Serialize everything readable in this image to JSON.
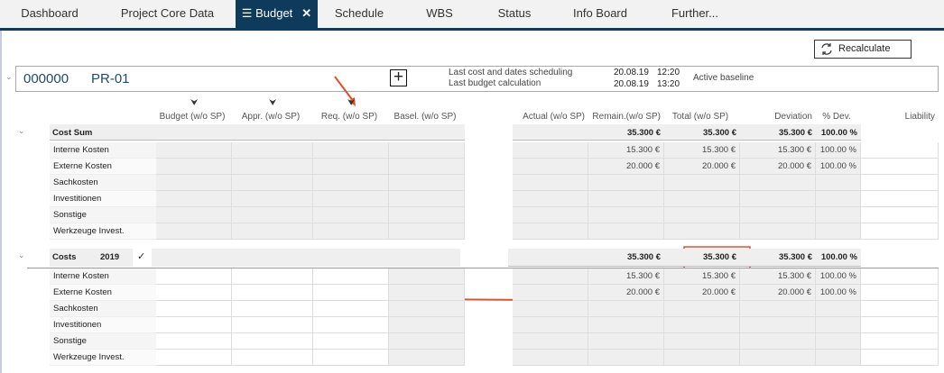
{
  "tabs": [
    {
      "label": "Dashboard"
    },
    {
      "label": "Project Core Data"
    },
    {
      "label": "Budget",
      "active": true
    },
    {
      "label": "Schedule"
    },
    {
      "label": "WBS"
    },
    {
      "label": "Status"
    },
    {
      "label": "Info Board"
    },
    {
      "label": "Further..."
    }
  ],
  "toolbar": {
    "recalculate_label": "Recalculate"
  },
  "project": {
    "number": "000000",
    "code": "PR-01",
    "sched_label": "Last cost and dates scheduling",
    "sched_date": "20.08.19",
    "sched_time": "12:20",
    "calc_label": "Last budget calculation",
    "calc_date": "20.08.19",
    "calc_time": "13:20",
    "baseline": "Active baseline"
  },
  "columns": [
    "Budget (w/o SP)",
    "Appr. (w/o SP)",
    "Req. (w/o SP)",
    "Basel. (w/o SP)",
    "Actual (w/o SP)",
    "Remain.(w/o SP)",
    "Total (w/o SP)",
    "Deviation",
    "% Dev.",
    "Liability"
  ],
  "cost_sum": {
    "title": "Cost Sum",
    "remain": "35.300 €",
    "total": "35.300 €",
    "deviation": "35.300 €",
    "pct": "100.00 %",
    "rows": [
      {
        "label": "Interne Kosten",
        "remain": "15.300 €",
        "total": "15.300 €",
        "deviation": "15.300 €",
        "pct": "100.00 %"
      },
      {
        "label": "Externe Kosten",
        "remain": "20.000 €",
        "total": "20.000 €",
        "deviation": "20.000 €",
        "pct": "100.00 %"
      },
      {
        "label": "Sachkosten"
      },
      {
        "label": "Investitionen"
      },
      {
        "label": "Sonstige"
      },
      {
        "label": "Werkzeuge Invest."
      }
    ]
  },
  "costs": {
    "title": "Costs",
    "year": "2019",
    "remain": "35.300 €",
    "total": "35.300 €",
    "deviation": "35.300 €",
    "pct": "100.00 %",
    "rows": [
      {
        "label": "Interne Kosten",
        "remain": "15.300 €",
        "total": "15.300 €",
        "deviation": "15.300 €",
        "pct": "100.00 %"
      },
      {
        "label": "Externe Kosten",
        "remain": "20.000 €",
        "total": "20.000 €",
        "deviation": "20.000 €",
        "pct": "100.00 %"
      },
      {
        "label": "Sachkosten"
      },
      {
        "label": "Investitionen"
      },
      {
        "label": "Sonstige"
      },
      {
        "label": "Werkzeuge Invest."
      }
    ]
  },
  "colors": {
    "brand": "#0e3a5c",
    "annotation": "#e2502a"
  }
}
